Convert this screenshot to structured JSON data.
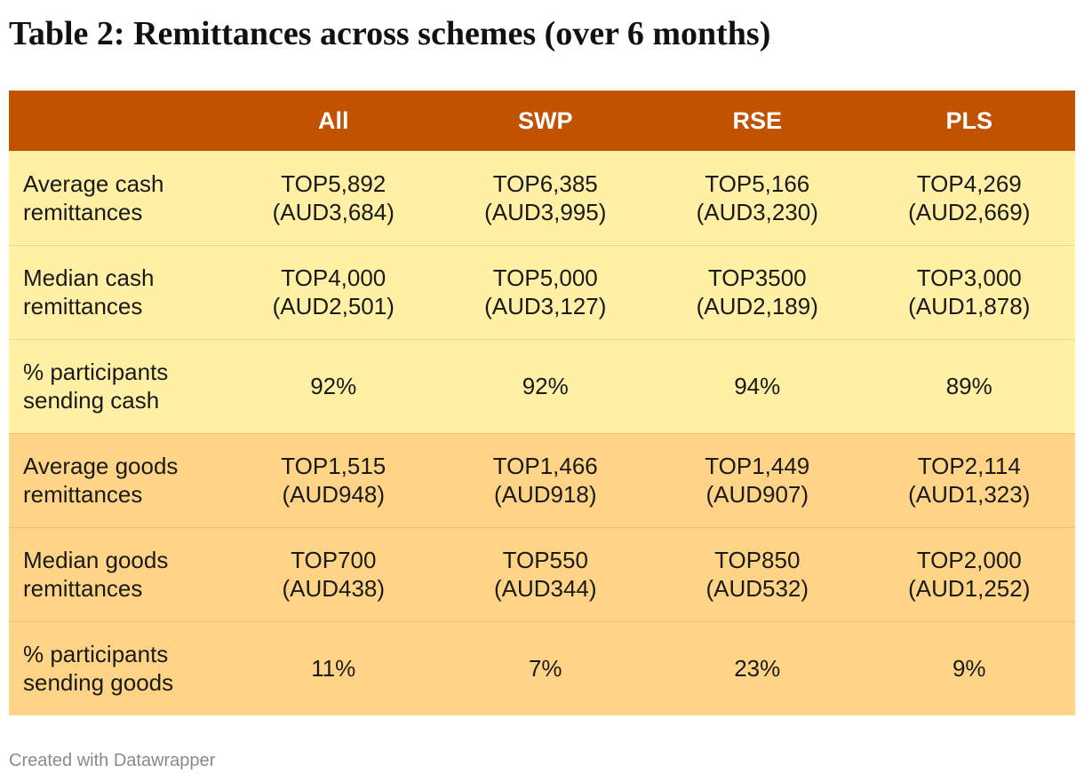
{
  "title": "Table 2: Remittances across schemes (over 6 months)",
  "colors": {
    "header_bg": "#c05200",
    "cash_rows_bg": "#fff0a6",
    "goods_rows_bg": "#ffd486"
  },
  "chart_data": {
    "type": "table",
    "columns": [
      "",
      "All",
      "SWP",
      "RSE",
      "PLS"
    ],
    "rows": [
      {
        "group": "cash",
        "label": "Average cash remittances",
        "values": [
          "TOP5,892\n(AUD3,684)",
          "TOP6,385\n(AUD3,995)",
          "TOP5,166\n(AUD3,230)",
          "TOP4,269\n(AUD2,669)"
        ]
      },
      {
        "group": "cash",
        "label": "Median cash remittances",
        "values": [
          "TOP4,000\n(AUD2,501)",
          "TOP5,000\n(AUD3,127)",
          "TOP3500\n(AUD2,189)",
          "TOP3,000\n(AUD1,878)"
        ]
      },
      {
        "group": "cash",
        "label": "% participants sending cash",
        "values": [
          "92%",
          "92%",
          "94%",
          "89%"
        ]
      },
      {
        "group": "goods",
        "label": "Average goods remittances",
        "values": [
          "TOP1,515\n(AUD948)",
          "TOP1,466\n(AUD918)",
          "TOP1,449\n(AUD907)",
          "TOP2,114\n(AUD1,323)"
        ]
      },
      {
        "group": "goods",
        "label": "Median goods remittances",
        "values": [
          "TOP700\n(AUD438)",
          "TOP550\n(AUD344)",
          "TOP850\n(AUD532)",
          "TOP2,000\n(AUD1,252)"
        ]
      },
      {
        "group": "goods",
        "label": "% participants sending goods",
        "values": [
          "11%",
          "7%",
          "23%",
          "9%"
        ]
      }
    ]
  },
  "footer": "Created with Datawrapper"
}
